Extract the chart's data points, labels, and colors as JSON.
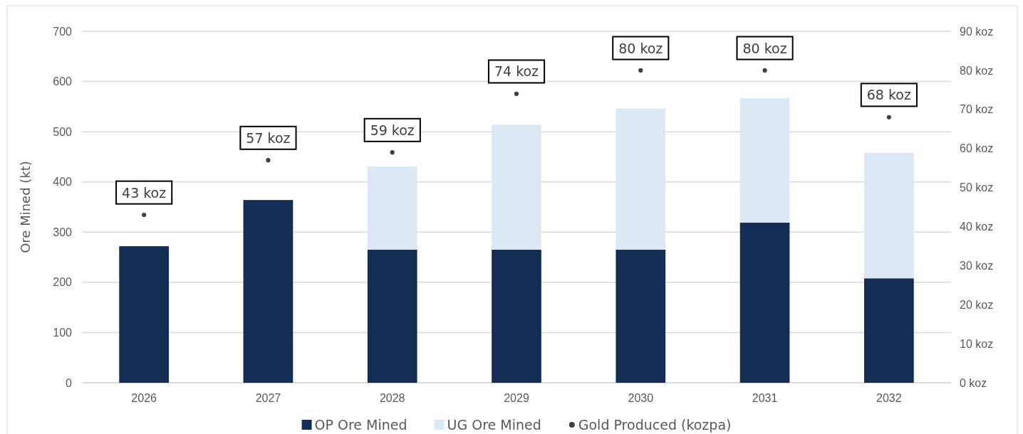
{
  "chart_data": {
    "type": "bar",
    "stacked": true,
    "ylabel": "Ore Mined  (kt)",
    "categories": [
      "2026",
      "2027",
      "2028",
      "2029",
      "2030",
      "2031",
      "2032"
    ],
    "series": [
      {
        "name": "OP Ore Mined",
        "color": "#142d55",
        "values": [
          272,
          364,
          265,
          265,
          265,
          319,
          208
        ]
      },
      {
        "name": "UG Ore Mined",
        "color": "#dce9f5",
        "values": [
          0,
          0,
          166,
          249,
          281,
          248,
          250
        ]
      },
      {
        "name": "Gold Produced (kozpa)",
        "type": "scatter",
        "marker": "circle",
        "color": "#404040",
        "axis": "y2",
        "values": [
          43,
          57,
          59,
          74,
          80,
          80,
          68
        ],
        "value_labels": [
          "43 koz",
          "57 koz",
          "59 koz",
          "74 koz",
          "80 koz",
          "80 koz",
          "68 koz"
        ]
      }
    ],
    "ylim": [
      0,
      700
    ],
    "yticks": [
      0,
      100,
      200,
      300,
      400,
      500,
      600,
      700
    ],
    "y2lim": [
      0,
      90
    ],
    "y2ticks": [
      {
        "value": 0,
        "label": "0 koz"
      },
      {
        "value": 10,
        "label": "10 koz"
      },
      {
        "value": 20,
        "label": "20 koz"
      },
      {
        "value": 30,
        "label": "30 koz"
      },
      {
        "value": 40,
        "label": "40 koz"
      },
      {
        "value": 50,
        "label": "50 koz"
      },
      {
        "value": 60,
        "label": "60 koz"
      },
      {
        "value": 70,
        "label": "70 koz"
      },
      {
        "value": 80,
        "label": "80 koz"
      },
      {
        "value": 90,
        "label": "90 koz"
      }
    ],
    "grid": "y",
    "legend": "bottom"
  }
}
